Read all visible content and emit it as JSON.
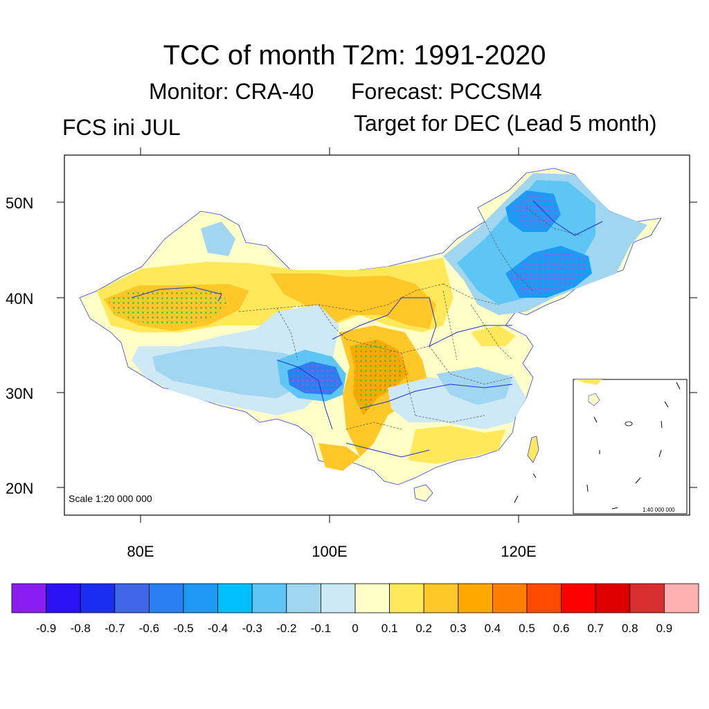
{
  "title": "TCC of month T2m: 1991-2020",
  "monitor": "Monitor: CRA-40",
  "forecast": "Forecast: PCCSM4",
  "fcs": "FCS ini JUL",
  "target": "Target for DEC (Lead 5 month)",
  "scale_main": "Scale 1:20 000 000",
  "scale_inset": "1:40 000 000",
  "axes": {
    "lat_labels": [
      "50N",
      "40N",
      "30N",
      "20N"
    ],
    "lon_labels": [
      "80E",
      "100E",
      "120E"
    ]
  },
  "colorbar": {
    "labels": [
      "-0.9",
      "-0.8",
      "-0.7",
      "-0.6",
      "-0.5",
      "-0.4",
      "-0.3",
      "-0.2",
      "-0.1",
      "0",
      "0.1",
      "0.2",
      "0.3",
      "0.4",
      "0.5",
      "0.6",
      "0.7",
      "0.8",
      "0.9"
    ],
    "colors": [
      "#8a1ef0",
      "#2a12f5",
      "#1a2ef0",
      "#3e66e6",
      "#2a80f0",
      "#1e9af5",
      "#00bfff",
      "#5ec6f5",
      "#a0d6f0",
      "#cde8f6",
      "#ffffc8",
      "#ffe85a",
      "#ffc828",
      "#ffa800",
      "#ff8000",
      "#ff4a00",
      "#ff0000",
      "#dc0000",
      "#d83030",
      "#ffb0b0"
    ]
  }
}
